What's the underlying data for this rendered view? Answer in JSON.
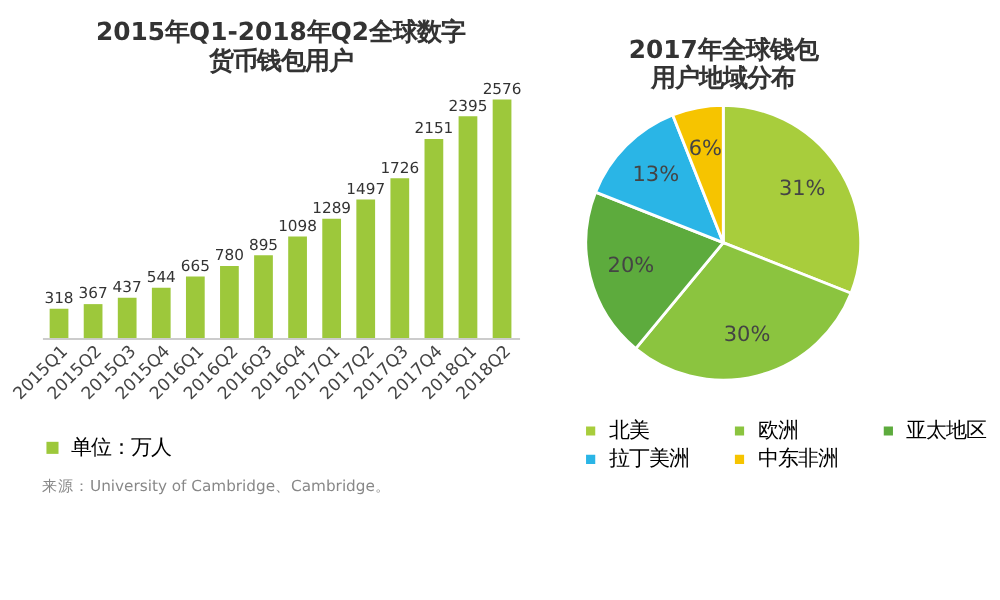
{
  "chart_data": [
    {
      "type": "bar",
      "title": "2015年Q1-2018年Q2全球数字货币钱包用户",
      "categories": [
        "2015Q1",
        "2015Q2",
        "2015Q3",
        "2015Q4",
        "2016Q1",
        "2016Q2",
        "2016Q3",
        "2016Q4",
        "2017Q1",
        "2017Q2",
        "2017Q3",
        "2017Q4",
        "2018Q1",
        "2018Q2"
      ],
      "series": [
        {
          "name": "单位：万人",
          "color": "#9dc83b",
          "values": [
            318,
            367,
            437,
            544,
            665,
            780,
            895,
            1098,
            1289,
            1497,
            1726,
            2151,
            2395,
            2576
          ]
        }
      ],
      "data_labels": true,
      "tick_labels": "x",
      "grid": false,
      "legend": "bottom",
      "annotations": [
        "来源：University of Cambridge、Cambridge。"
      ]
    },
    {
      "type": "pie",
      "title": "2017年全球钱包用户地域分布",
      "categories": [
        "北美",
        "欧洲",
        "亚太地区",
        "拉丁美洲",
        "中东非洲"
      ],
      "values": [
        31,
        30,
        20,
        13,
        6
      ],
      "colors": [
        "#a8cd3c",
        "#8bc43f",
        "#5dab3d",
        "#2ab5e6",
        "#f6c400"
      ],
      "value_labels": [
        "31%",
        "30%",
        "20%",
        "13%",
        "6%"
      ],
      "legend": "bottom"
    }
  ]
}
